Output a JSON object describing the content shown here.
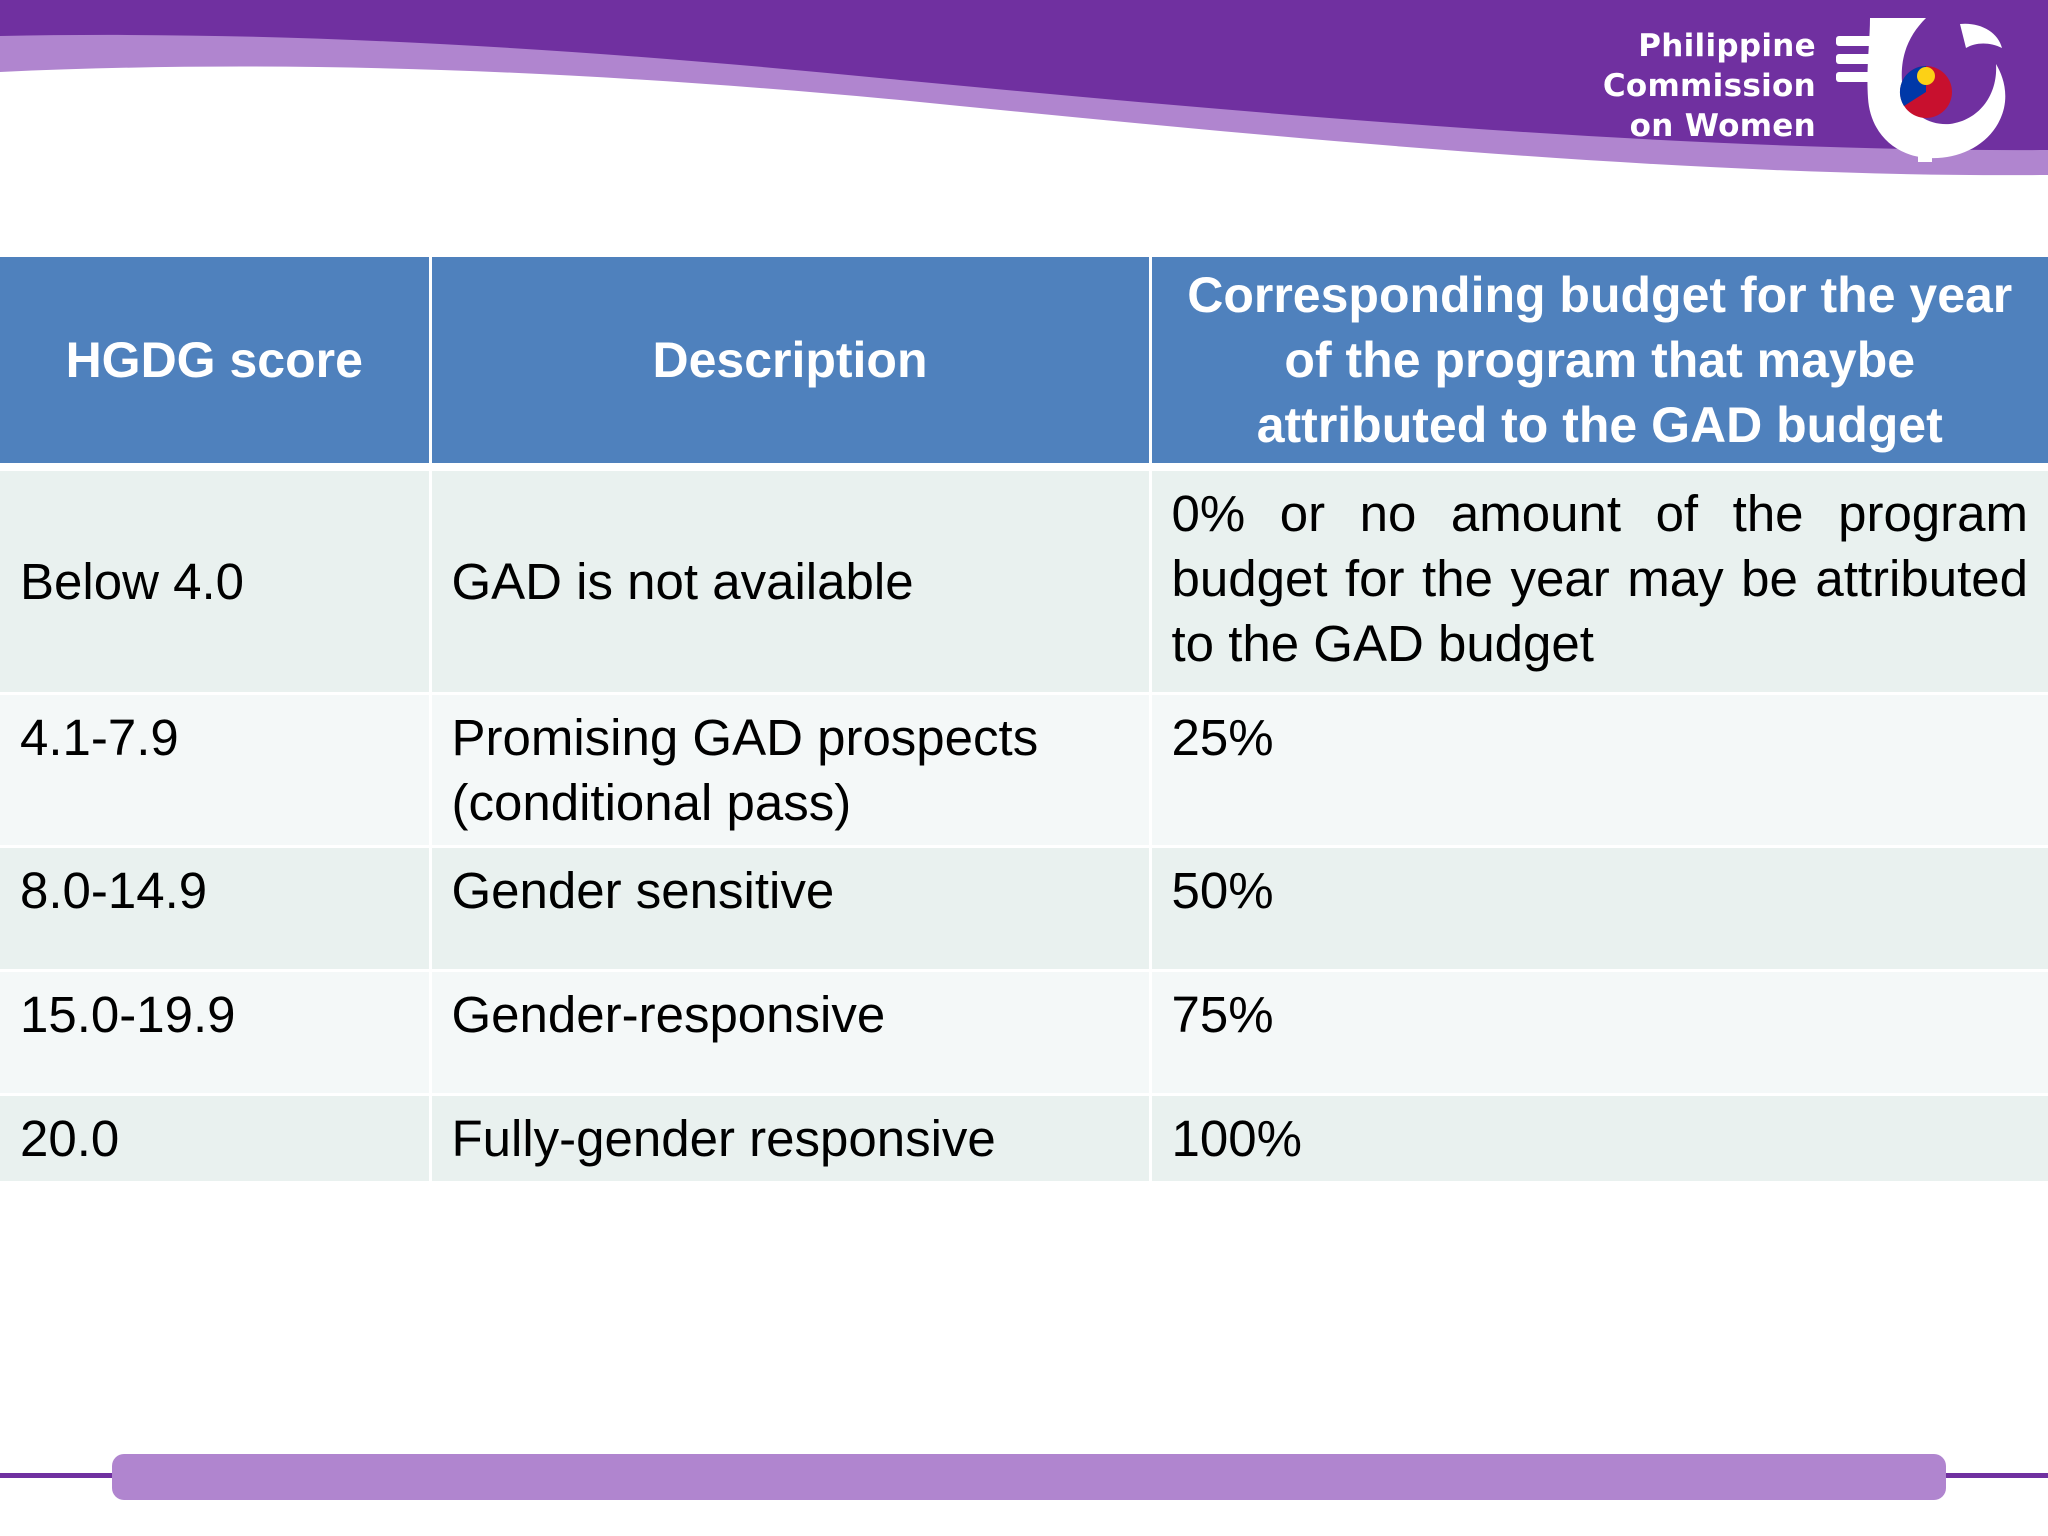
{
  "header": {
    "org_name_lines": [
      "Philippine",
      "Commission",
      "on Women"
    ],
    "colors": {
      "band_dark": "#7030a0",
      "band_light": "#b085cf"
    },
    "logo_icon": "pcw-logo-icon"
  },
  "table": {
    "headers": [
      "HGDG score",
      "Description",
      "Corresponding budget for the year of the program that maybe attributed to the GAD budget"
    ],
    "rows": [
      {
        "score": "Below 4.0",
        "description": "GAD is not available",
        "budget": "0% or no amount of the program budget for the year may be attributed to the GAD budget"
      },
      {
        "score": "4.1-7.9",
        "description": "Promising GAD prospects (conditional pass)",
        "budget": "25%"
      },
      {
        "score": "8.0-14.9",
        "description": "Gender sensitive",
        "budget": "50%"
      },
      {
        "score": "15.0-19.9",
        "description": "Gender-responsive",
        "budget": "75%"
      },
      {
        "score": "20.0",
        "description": "Fully-gender responsive",
        "budget": "100%"
      }
    ],
    "colors": {
      "header_bg": "#4f81bd",
      "row_odd": "#e9f1ef",
      "row_even": "#f4f8f8"
    }
  }
}
